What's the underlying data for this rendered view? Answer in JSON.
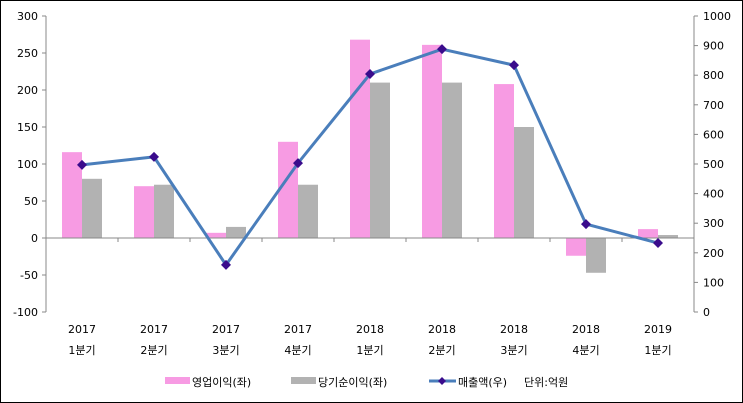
{
  "chart_data": {
    "type": "bar+line",
    "categories": [
      {
        "year": "2017",
        "quarter": "1분기"
      },
      {
        "year": "2017",
        "quarter": "2분기"
      },
      {
        "year": "2017",
        "quarter": "3분기"
      },
      {
        "year": "2017",
        "quarter": "4분기"
      },
      {
        "year": "2018",
        "quarter": "1분기"
      },
      {
        "year": "2018",
        "quarter": "2분기"
      },
      {
        "year": "2018",
        "quarter": "3분기"
      },
      {
        "year": "2018",
        "quarter": "4분기"
      },
      {
        "year": "2019",
        "quarter": "1분기"
      }
    ],
    "series": [
      {
        "name": "영업이익(좌)",
        "type": "bar",
        "axis": "left",
        "color": "#f79be3",
        "values": [
          116,
          70,
          7,
          130,
          268,
          261,
          208,
          -24,
          12
        ]
      },
      {
        "name": "당기순이익(좌)",
        "type": "bar",
        "axis": "left",
        "color": "#b2b2b2",
        "values": [
          80,
          72,
          15,
          72,
          210,
          210,
          150,
          -47,
          4
        ]
      },
      {
        "name": "매출액(우)",
        "type": "line",
        "axis": "right",
        "color": "#4a7ebb",
        "marker_color": "#3a0c8c",
        "values": [
          497,
          524,
          159,
          503,
          804,
          888,
          834,
          297,
          233
        ]
      }
    ],
    "unit_note": "단위:억원",
    "y_left": {
      "range": [
        -100,
        300
      ],
      "ticks": [
        300,
        250,
        200,
        150,
        100,
        50,
        0,
        -50,
        -100
      ]
    },
    "y_right": {
      "range": [
        0,
        1000
      ],
      "ticks": [
        1000,
        900,
        800,
        700,
        600,
        500,
        400,
        300,
        200,
        100,
        0
      ]
    },
    "legend": "bottom"
  }
}
